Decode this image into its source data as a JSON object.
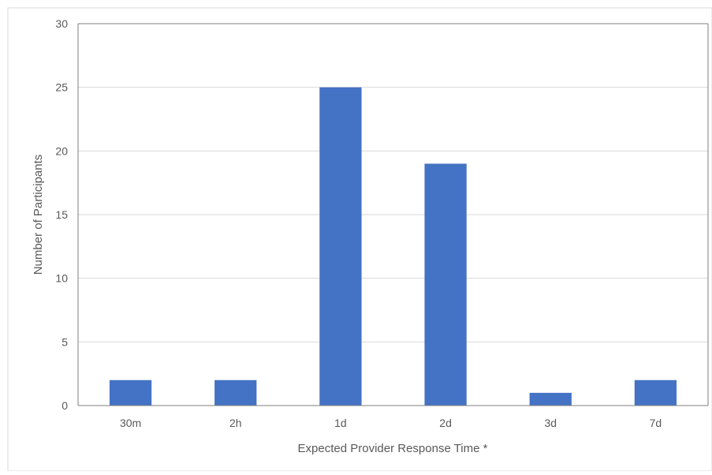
{
  "chart_data": {
    "type": "bar",
    "title": "",
    "xlabel": "Expected Provider Response Time *",
    "ylabel": "Number of Participants",
    "categories": [
      "30m",
      "2h",
      "1d",
      "2d",
      "3d",
      "7d"
    ],
    "values": [
      2,
      2,
      25,
      19,
      1,
      2
    ],
    "ylim": [
      0,
      30
    ],
    "yticks": [
      "0",
      "5",
      "10",
      "15",
      "20",
      "25",
      "30"
    ],
    "grid": true,
    "legend": "none",
    "bar_color": "#4472C4",
    "grid_color": "#D9D9D9",
    "axis_color": "#7F7F7F",
    "text_color": "#595959"
  }
}
